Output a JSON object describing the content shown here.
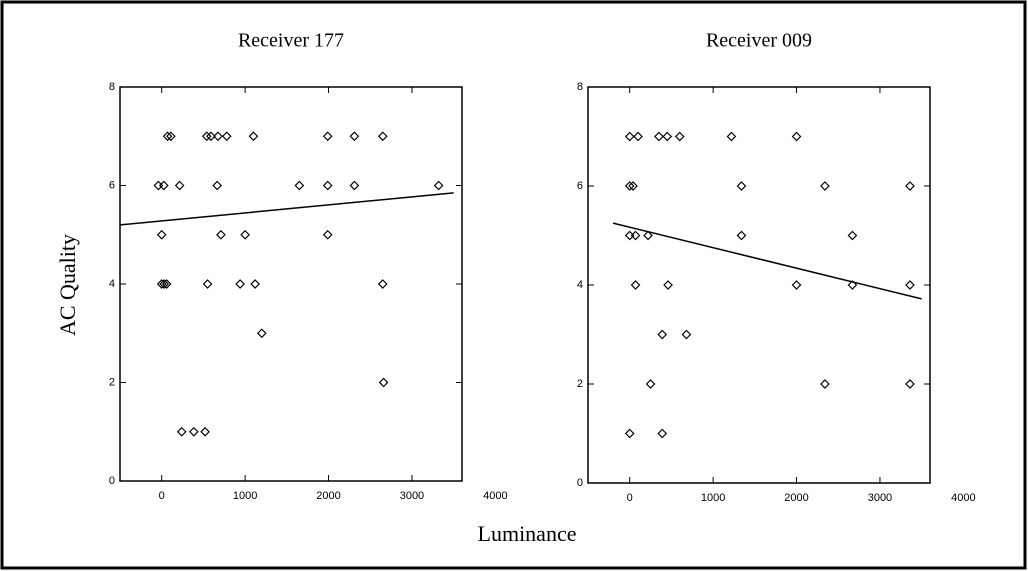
{
  "xlabel": "Luminance",
  "ylabel": "AC Quality",
  "chart_data": [
    {
      "type": "scatter",
      "title": "Receiver 177",
      "xlim": [
        -500,
        3600
      ],
      "xticks": [
        0,
        1000,
        2000,
        3000,
        4000
      ],
      "ylim": [
        0,
        8
      ],
      "yticks": [
        0,
        2,
        4,
        6,
        8
      ],
      "color": "#000000",
      "series": [
        {
          "type": "scatter",
          "x": [
            70,
            110,
            540,
            590,
            675,
            780,
            1100,
            1990,
            2310,
            2650,
            -40,
            25,
            215,
            665,
            1650,
            1990,
            2310,
            3320,
            0,
            710,
            1000,
            1990,
            0,
            30,
            60,
            550,
            940,
            1120,
            2650,
            1200,
            2660,
            240,
            385,
            520
          ],
          "values": [
            7,
            7,
            7,
            7,
            7,
            7,
            7,
            7,
            7,
            7,
            6,
            6,
            6,
            6,
            6,
            6,
            6,
            6,
            5,
            5,
            5,
            5,
            4,
            4,
            4,
            4,
            4,
            4,
            4,
            3,
            2,
            1,
            1,
            1
          ]
        },
        {
          "type": "line",
          "x": [
            -500,
            3500
          ],
          "values": [
            5.2,
            5.85
          ]
        }
      ]
    },
    {
      "type": "scatter",
      "title": "Receiver 009",
      "xlim": [
        -500,
        3600
      ],
      "xticks": [
        0,
        1000,
        2000,
        3000,
        4000
      ],
      "ylim": [
        0,
        8
      ],
      "yticks": [
        0,
        2,
        4,
        6,
        8
      ],
      "color": "#000000",
      "series": [
        {
          "type": "scatter",
          "x": [
            0,
            100,
            350,
            450,
            600,
            1220,
            2000,
            0,
            40,
            1340,
            2340,
            3360,
            0,
            70,
            220,
            1340,
            2670,
            70,
            460,
            2000,
            2670,
            3360,
            390,
            680,
            250,
            2340,
            3360,
            0,
            390
          ],
          "values": [
            7,
            7,
            7,
            7,
            7,
            7,
            7,
            6,
            6,
            6,
            6,
            6,
            5,
            5,
            5,
            5,
            5,
            4,
            4,
            4,
            4,
            4,
            3,
            3,
            2,
            2,
            2,
            1,
            1
          ]
        },
        {
          "type": "line",
          "x": [
            -200,
            3500
          ],
          "values": [
            5.25,
            3.72
          ]
        }
      ]
    }
  ]
}
